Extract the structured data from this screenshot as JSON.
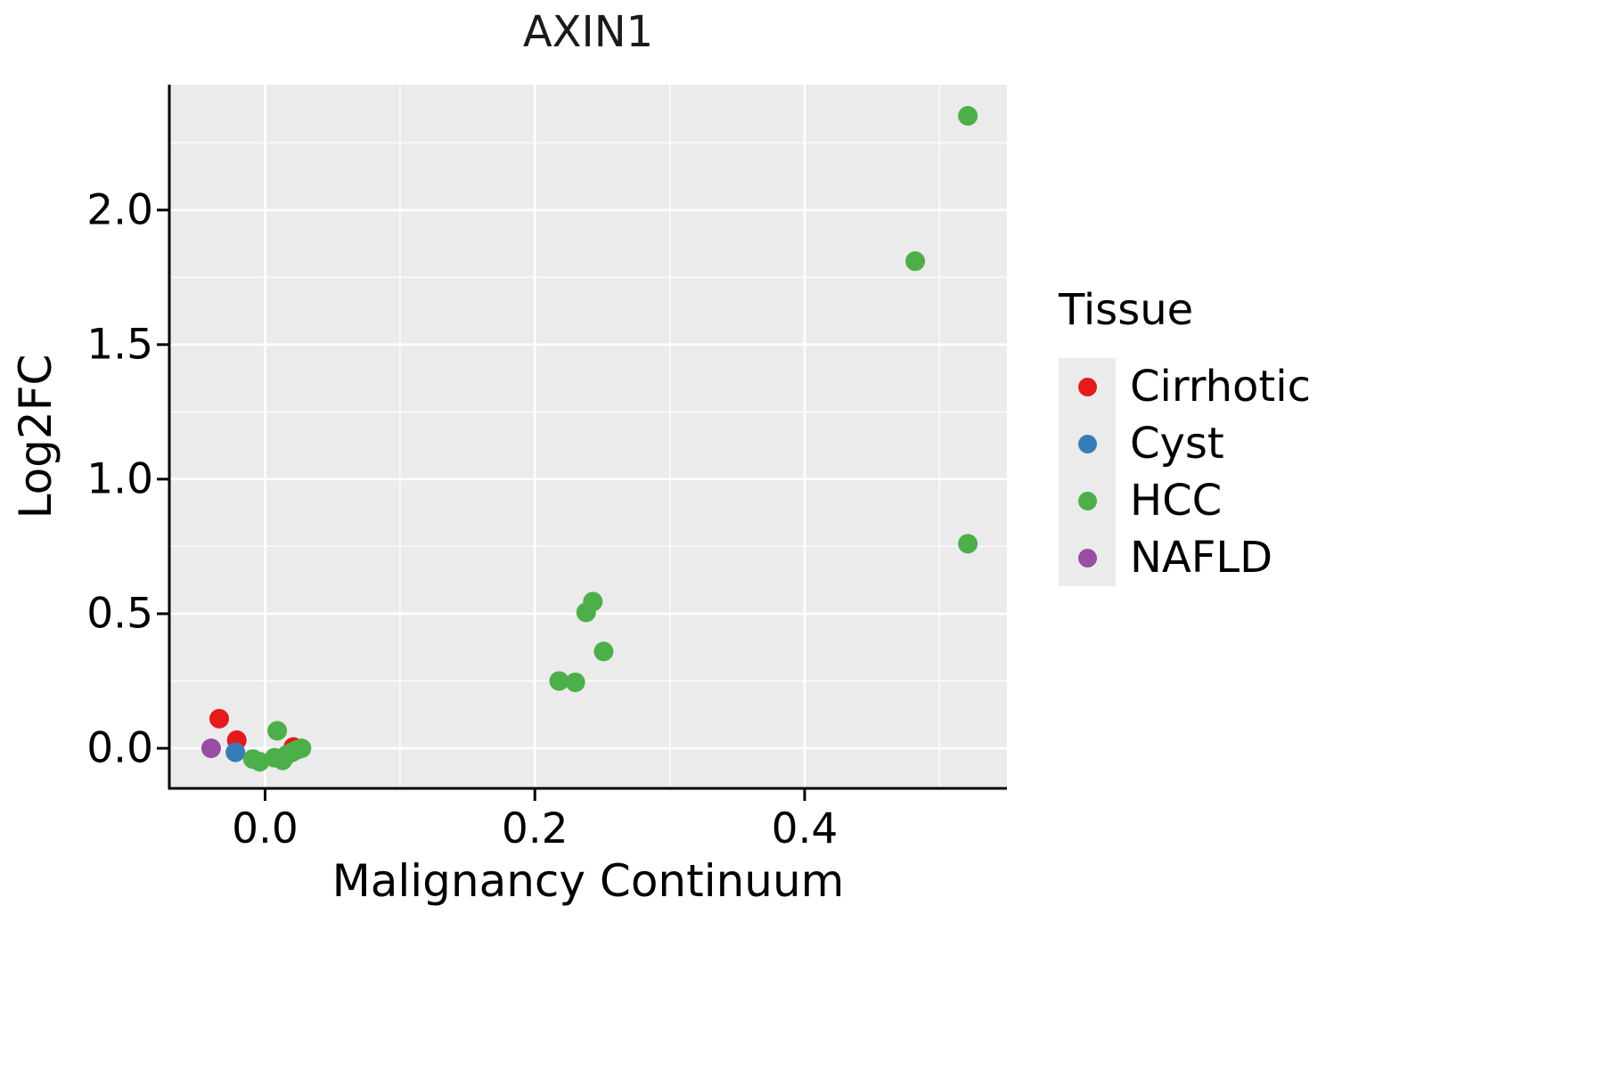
{
  "chart_data": {
    "type": "scatter",
    "title": "AXIN1",
    "xlabel": "Malignancy Continuum",
    "ylabel": "Log2FC",
    "xlim": [
      -0.071,
      0.55
    ],
    "ylim": [
      -0.149,
      2.466
    ],
    "panel_bg": "#EBEBEB",
    "grid_color": "#FFFFFF",
    "axis_color": "#000000",
    "grid": true,
    "legend_position": "right",
    "legend_title": "Tissue",
    "x_ticks": [
      {
        "v": 0.0,
        "label": "0.0"
      },
      {
        "v": 0.2,
        "label": "0.2"
      },
      {
        "v": 0.4,
        "label": "0.4"
      }
    ],
    "y_ticks": [
      {
        "v": 0.0,
        "label": "0.0"
      },
      {
        "v": 0.5,
        "label": "0.5"
      },
      {
        "v": 1.0,
        "label": "1.0"
      },
      {
        "v": 1.5,
        "label": "1.5"
      },
      {
        "v": 2.0,
        "label": "2.0"
      }
    ],
    "x_minor": [
      0.1,
      0.3,
      0.5
    ],
    "y_minor": [
      0.25,
      0.75,
      1.25,
      1.75,
      2.25
    ],
    "series": [
      {
        "name": "Cirrhotic",
        "color": "#E41A1C",
        "points": [
          [
            -0.034,
            0.11
          ],
          [
            -0.021,
            0.03
          ],
          [
            0.021,
            0.005
          ]
        ]
      },
      {
        "name": "Cyst",
        "color": "#377EB8",
        "points": [
          [
            -0.022,
            -0.015
          ]
        ]
      },
      {
        "name": "HCC",
        "color": "#4DAF4A",
        "points": [
          [
            0.521,
            2.35
          ],
          [
            0.482,
            1.81
          ],
          [
            0.521,
            0.76
          ],
          [
            0.243,
            0.545
          ],
          [
            0.238,
            0.505
          ],
          [
            0.251,
            0.36
          ],
          [
            0.218,
            0.25
          ],
          [
            0.23,
            0.245
          ],
          [
            0.009,
            0.065
          ],
          [
            -0.009,
            -0.04
          ],
          [
            -0.004,
            -0.05
          ],
          [
            0.007,
            -0.035
          ],
          [
            0.013,
            -0.045
          ],
          [
            0.016,
            -0.025
          ],
          [
            0.02,
            -0.015
          ],
          [
            0.024,
            -0.005
          ],
          [
            0.027,
            0.0
          ]
        ]
      },
      {
        "name": "NAFLD",
        "color": "#984EA3",
        "points": [
          [
            -0.04,
            0.0
          ]
        ]
      }
    ]
  }
}
